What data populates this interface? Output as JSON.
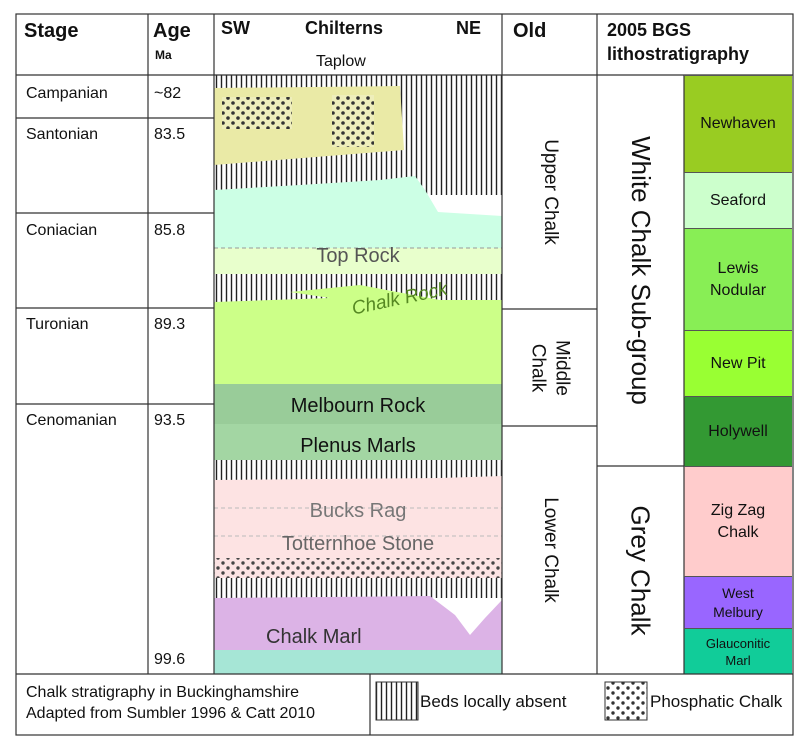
{
  "header": {
    "stage": "Stage",
    "age": "Age",
    "age_unit": "Ma",
    "sw": "SW",
    "chilterns": "Chilterns",
    "ne": "NE",
    "old": "Old",
    "bgs_line1": "2005 BGS",
    "bgs_line2": "lithostratigraphy"
  },
  "stages": [
    {
      "name": "Campanian",
      "age": "~82"
    },
    {
      "name": "Santonian",
      "age": "83.5"
    },
    {
      "name": "Coniacian",
      "age": "85.8"
    },
    {
      "name": "Turonian",
      "age": "89.3"
    },
    {
      "name": "Cenomanian",
      "age": "93.5"
    }
  ],
  "base_age": "99.6",
  "section_units": {
    "taplow": "Taplow",
    "top_rock": "Top Rock",
    "chalk_rock": "Chalk Rock",
    "melbourn_rock": "Melbourn Rock",
    "plenus_marls": "Plenus Marls",
    "bucks_rag": "Bucks Rag",
    "totternhoe_stone": "Totternhoe Stone",
    "chalk_marl": "Chalk Marl"
  },
  "old_divisions": {
    "upper": "Upper Chalk",
    "middle": "Middle Chalk",
    "lower": "Lower Chalk"
  },
  "subgroups": {
    "white": "White Chalk Sub-group",
    "grey": "Grey Chalk"
  },
  "bgs_formations": [
    {
      "name": "Newhaven",
      "color": "#99cc22"
    },
    {
      "name": "Seaford",
      "color": "#ccffcc"
    },
    {
      "name": "Lewis Nodular",
      "color": "#88ee55"
    },
    {
      "name": "New Pit",
      "color": "#99ff33"
    },
    {
      "name": "Holywell",
      "color": "#339933"
    },
    {
      "name": "Zig Zag Chalk",
      "color": "#ffcccc"
    },
    {
      "name": "West Melbury",
      "color": "#9966ff"
    },
    {
      "name": "Glauconitic Marl",
      "color": "#11cc99"
    }
  ],
  "footer": {
    "caption_line1": "Chalk stratigraphy in Buckinghamshire",
    "caption_line2": "Adapted from Sumbler 1996 & Catt 2010",
    "legend_absent": "Beds locally absent",
    "legend_phosphatic": "Phosphatic Chalk"
  }
}
